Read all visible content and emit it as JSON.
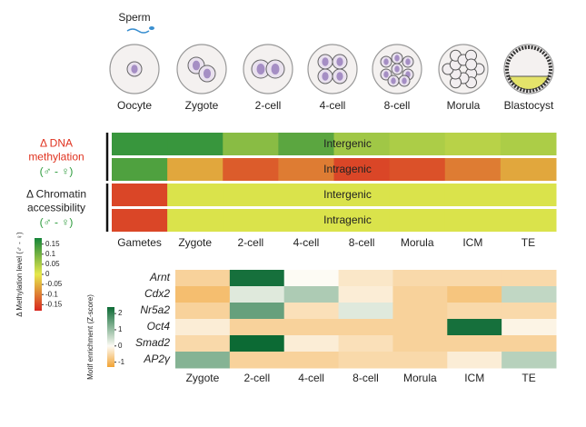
{
  "illustration": {
    "sperm": "Sperm",
    "stages": [
      "Oocyte",
      "Zygote",
      "2-cell",
      "4-cell",
      "8-cell",
      "Morula",
      "Blastocyst"
    ]
  },
  "chart_data": [
    {
      "type": "heatmap",
      "categories": [
        "Gametes",
        "Zygote",
        "2-cell",
        "4-cell",
        "8-cell",
        "Morula",
        "ICM",
        "TE"
      ],
      "colors": [
        "#d8261f",
        "#e6e84c",
        "#15853a"
      ],
      "groups": [
        {
          "label_lines": [
            "Δ DNA",
            "methylation"
          ],
          "sublabel": "(♂ - ♀)",
          "color": "#e0321f",
          "series": [
            {
              "name": "Intergenic",
              "values": [
                0.15,
                0.15,
                0.08,
                0.12,
                0.06,
                0.05,
                0.04,
                0.05
              ]
            },
            {
              "name": "Intragenic",
              "values": [
                0.13,
                -0.06,
                -0.13,
                -0.1,
                -0.15,
                -0.14,
                -0.1,
                -0.06
              ]
            }
          ]
        },
        {
          "label_lines": [
            "Δ Chromatin",
            "accessibility"
          ],
          "sublabel": "(♂ - ♀)",
          "color": "#222222",
          "series": [
            {
              "name": "Intergenic",
              "values": [
                -0.15,
                0.01,
                0.01,
                0.01,
                0.01,
                0.01,
                0.01,
                0.01
              ]
            },
            {
              "name": "Intragenic",
              "values": [
                -0.15,
                0.01,
                0.01,
                0.01,
                0.01,
                0.01,
                0.01,
                0.01
              ]
            }
          ]
        }
      ],
      "colorbar": {
        "label": "Δ Methylation level (♂ - ♀)",
        "zlim": [
          -0.18,
          0.18
        ],
        "ticks": [
          0.15,
          0.1,
          0.05,
          0,
          -0.05,
          -0.1,
          -0.15
        ]
      }
    },
    {
      "type": "heatmap",
      "categories": [
        "Zygote",
        "2-cell",
        "4-cell",
        "8-cell",
        "Morula",
        "ICM",
        "TE"
      ],
      "colors": [
        "#f2a334",
        "#fdfbf4",
        "#0c6a34"
      ],
      "rows": [
        {
          "name": "Arnt",
          "values": [
            -0.6,
            2.3,
            0,
            -0.3,
            -0.5,
            -0.5,
            -0.5
          ]
        },
        {
          "name": "Cdx2",
          "values": [
            -0.9,
            0.3,
            0.8,
            -0.2,
            -0.6,
            -0.8,
            0.6
          ]
        },
        {
          "name": "Nr5a2",
          "values": [
            -0.6,
            1.5,
            -0.4,
            0.3,
            -0.6,
            -0.5,
            -0.5
          ]
        },
        {
          "name": "Oct4",
          "values": [
            -0.2,
            -0.6,
            -0.6,
            -0.6,
            -0.6,
            2.3,
            -0.1
          ]
        },
        {
          "name": "Smad2",
          "values": [
            -0.5,
            2.4,
            -0.2,
            -0.4,
            -0.6,
            -0.6,
            -0.6
          ]
        },
        {
          "name": "AP2γ",
          "values": [
            1.2,
            -0.6,
            -0.6,
            -0.5,
            -0.5,
            -0.2,
            0.7
          ]
        }
      ],
      "colorbar": {
        "label": "Motif enrichment (Z-score)",
        "zlim": [
          -1.3,
          2.4
        ],
        "ticks": [
          2,
          1,
          0,
          -1
        ]
      }
    }
  ]
}
